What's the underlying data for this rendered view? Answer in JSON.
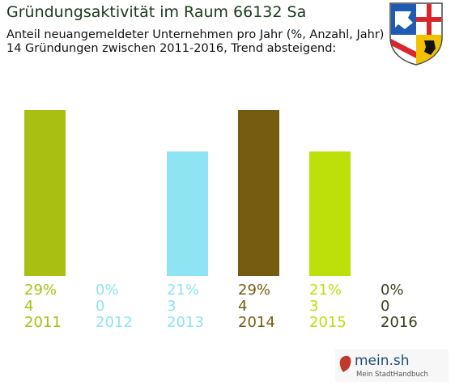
{
  "header": {
    "title": "Gründungsaktivität im Raum 66132 Sa",
    "subtitle1": "Anteil neuangemeldeter Unternehmen pro Jahr (%, Anzahl, Jahr)",
    "subtitle2": "14 Gründungen zwischen 2011-2016, Trend absteigend:"
  },
  "logo": {
    "name": "mein.sh",
    "tagline": "Mein StadtHandbuch",
    "icon": "map-pin-icon"
  },
  "crest": {
    "icon": "saarland-coat-of-arms-icon"
  },
  "chart_data": {
    "type": "bar",
    "categories": [
      "2011",
      "2012",
      "2013",
      "2014",
      "2015",
      "2016"
    ],
    "values": [
      4,
      0,
      3,
      4,
      3,
      0
    ],
    "percent_labels": [
      "29%",
      "0%",
      "21%",
      "29%",
      "21%",
      "0%"
    ],
    "count_labels": [
      "4",
      "0",
      "3",
      "4",
      "3",
      "0"
    ],
    "colors": [
      "#a9c013",
      "#8ee4f3",
      "#8ee4f3",
      "#755c10",
      "#bde00b",
      "#3d3d20"
    ],
    "ylim": [
      0,
      4
    ],
    "grid": false,
    "legend": "none",
    "xlabel": "",
    "ylabel": ""
  }
}
